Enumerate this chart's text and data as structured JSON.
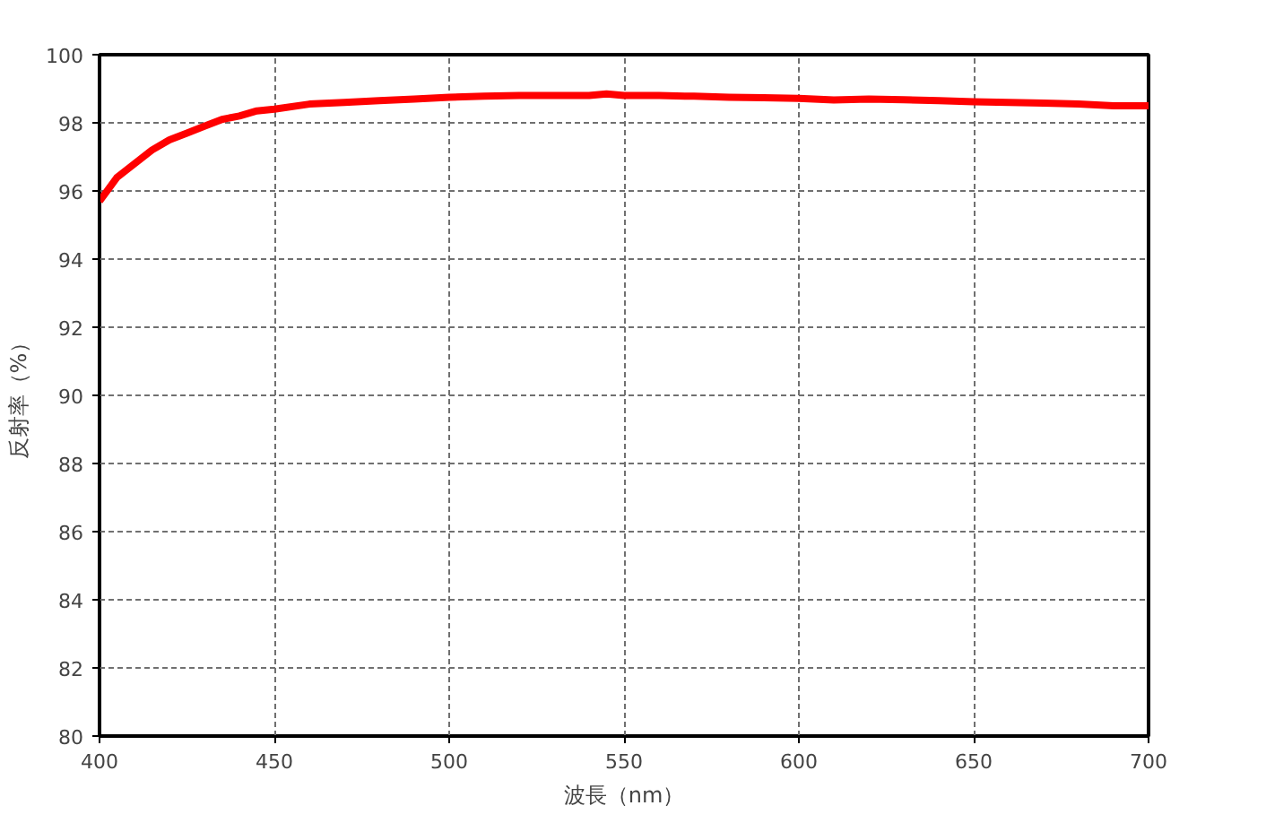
{
  "chart_data": {
    "type": "line",
    "xlabel": "波長（nm）",
    "ylabel": "反射率（%）",
    "x": [
      400,
      405,
      410,
      415,
      420,
      425,
      430,
      435,
      440,
      445,
      450,
      460,
      470,
      480,
      490,
      500,
      510,
      520,
      530,
      540,
      545,
      550,
      560,
      570,
      580,
      590,
      600,
      610,
      620,
      630,
      640,
      650,
      660,
      670,
      680,
      690,
      700
    ],
    "series": [
      {
        "color": "#ff0000",
        "values": [
          95.7,
          96.4,
          96.8,
          97.2,
          97.5,
          97.7,
          97.9,
          98.1,
          98.2,
          98.35,
          98.4,
          98.55,
          98.6,
          98.65,
          98.7,
          98.75,
          98.78,
          98.8,
          98.8,
          98.8,
          98.85,
          98.8,
          98.8,
          98.78,
          98.75,
          98.74,
          98.72,
          98.67,
          98.7,
          98.68,
          98.65,
          98.62,
          98.6,
          98.58,
          98.55,
          98.5,
          98.5
        ]
      }
    ],
    "xlim": [
      400,
      700
    ],
    "ylim": [
      80,
      100
    ],
    "xticks": [
      400,
      450,
      500,
      550,
      600,
      650,
      700
    ],
    "yticks": [
      80,
      82,
      84,
      86,
      88,
      90,
      92,
      94,
      96,
      98,
      100
    ],
    "grid": true,
    "marker": "none",
    "line_style": "solid"
  }
}
